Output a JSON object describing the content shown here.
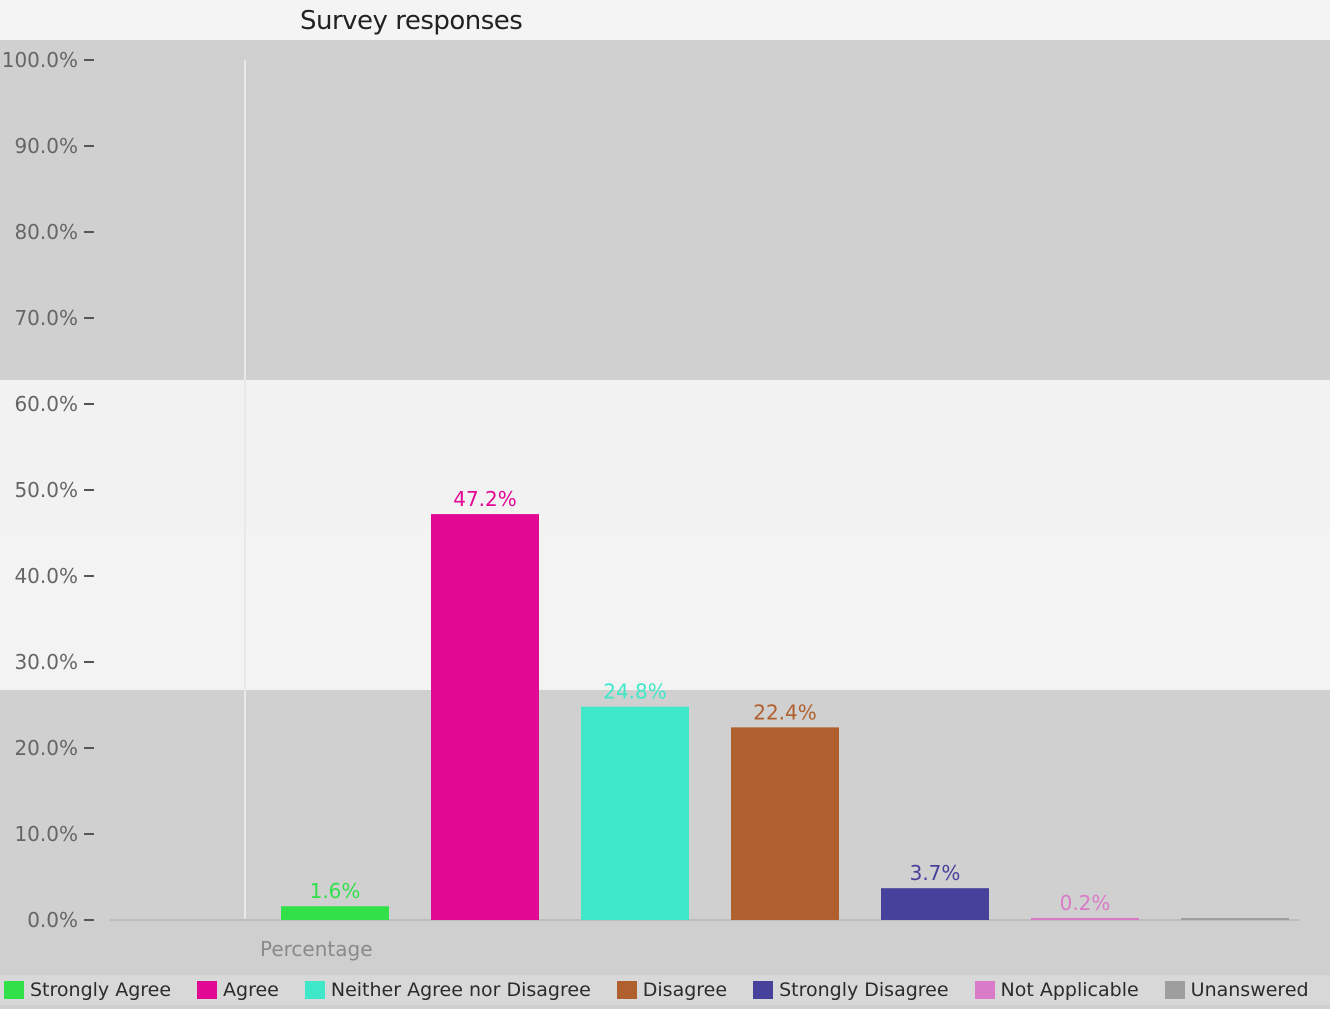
{
  "chart_data": {
    "type": "bar",
    "title": "Survey responses",
    "xlabel": "Percentage",
    "ylabel": "",
    "ylim": [
      0,
      100
    ],
    "y_ticks": [
      "0.0%",
      "10.0%",
      "20.0%",
      "30.0%",
      "40.0%",
      "50.0%",
      "60.0%",
      "70.0%",
      "80.0%",
      "90.0%",
      "100.0%"
    ],
    "categories": [
      "Strongly Agree",
      "Agree",
      "Neither Agree nor Disagree",
      "Disagree",
      "Strongly Disagree",
      "Not Applicable",
      "Unanswered"
    ],
    "series": [
      {
        "values": [
          1.6,
          47.2,
          24.8,
          22.4,
          3.7,
          0.2,
          0.1
        ],
        "labels": [
          "1.6%",
          "47.2%",
          "24.8%",
          "22.4%",
          "3.7%",
          "0.2%",
          ""
        ]
      }
    ],
    "colors": [
      "#32e04a",
      "#e20894",
      "#3fe8c8",
      "#b0602f",
      "#46419b",
      "#d97bc7",
      "#9e9e9e"
    ],
    "legend": [
      "Strongly Agree",
      "Agree",
      "Neither Agree nor Disagree",
      "Disagree",
      "Strongly Disagree",
      "Not Applicable",
      "Unanswered"
    ],
    "legend_position": "bottom",
    "grid": false
  }
}
